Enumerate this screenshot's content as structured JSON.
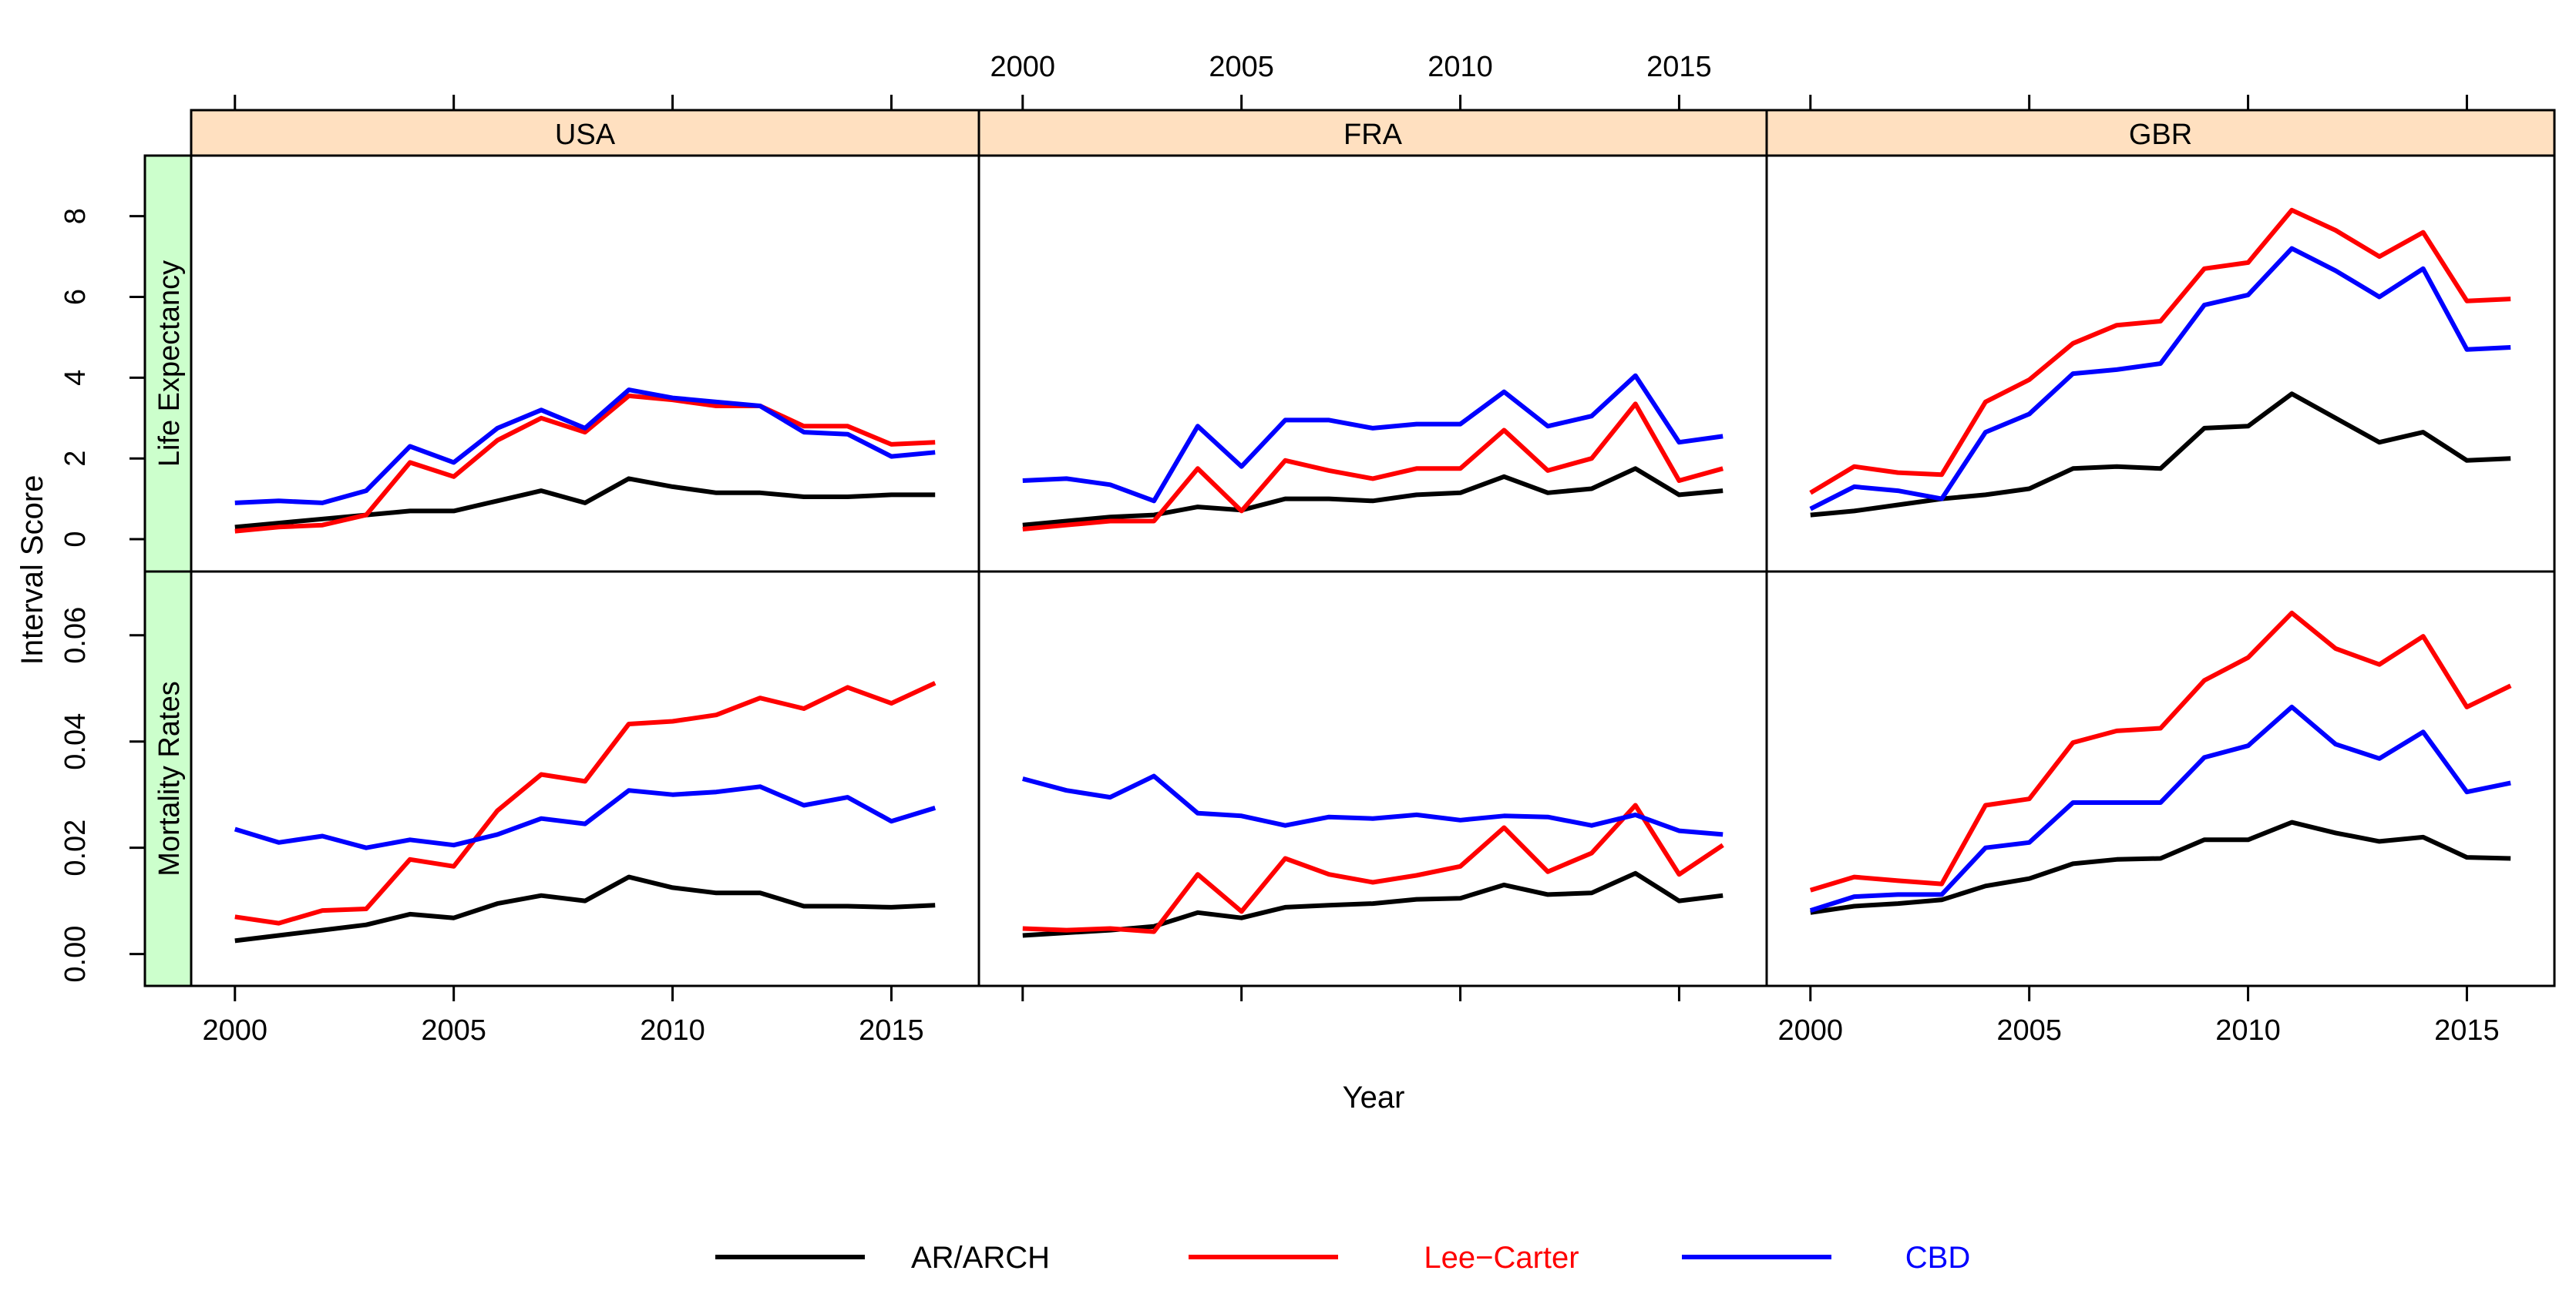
{
  "chart_data": {
    "type": "line",
    "layout": "lattice-panels",
    "xlabel": "Year",
    "ylabel": "Interval Score",
    "x_ticks": [
      2000,
      2005,
      2010,
      2015
    ],
    "x_tick_labels": [
      "2000",
      "2005",
      "2010",
      "2015"
    ],
    "xlim": [
      1999,
      2017
    ],
    "countries": [
      "USA",
      "FRA",
      "GBR"
    ],
    "rows": [
      {
        "label": "Life Expectancy",
        "ylim": [
          -0.8,
          9.5
        ],
        "ticks": [
          0,
          2,
          4,
          6,
          8
        ],
        "tick_labels": [
          "0",
          "2",
          "4",
          "6",
          "8"
        ]
      },
      {
        "label": "Mortality Rates",
        "ylim": [
          -0.006,
          0.072
        ],
        "ticks": [
          0,
          0.02,
          0.04,
          0.06
        ],
        "tick_labels": [
          "0.00",
          "0.02",
          "0.04",
          "0.06"
        ]
      }
    ],
    "legend": [
      {
        "name": "AR/ARCH",
        "color": "#000000",
        "label_color": "#000000"
      },
      {
        "name": "Lee−Carter",
        "color": "#ff0000",
        "label_color": "#ff0000"
      },
      {
        "name": "CBD",
        "color": "#0000ff",
        "label_color": "#0000ff"
      }
    ],
    "strip_colors": {
      "top": "#ffe0c0",
      "side": "#ccffcc"
    },
    "years": [
      2000,
      2001,
      2002,
      2003,
      2004,
      2005,
      2006,
      2007,
      2008,
      2009,
      2010,
      2011,
      2012,
      2013,
      2014,
      2015,
      2016
    ],
    "panels": [
      {
        "country": "USA",
        "row": "Life Expectancy",
        "series": [
          {
            "name": "AR/ARCH",
            "values": [
              0.3,
              0.4,
              0.5,
              0.6,
              0.7,
              0.7,
              0.95,
              1.2,
              0.9,
              1.5,
              1.3,
              1.15,
              1.15,
              1.05,
              1.05,
              1.1,
              1.1
            ]
          },
          {
            "name": "Lee-Carter",
            "values": [
              0.2,
              0.3,
              0.35,
              0.6,
              1.9,
              1.55,
              2.45,
              3.0,
              2.65,
              3.55,
              3.45,
              3.3,
              3.3,
              2.8,
              2.8,
              2.35,
              2.4
            ]
          },
          {
            "name": "CBD",
            "values": [
              0.9,
              0.95,
              0.9,
              1.2,
              2.3,
              1.9,
              2.75,
              3.2,
              2.75,
              3.7,
              3.5,
              3.4,
              3.3,
              2.65,
              2.6,
              2.05,
              2.15
            ]
          }
        ]
      },
      {
        "country": "FRA",
        "row": "Life Expectancy",
        "series": [
          {
            "name": "AR/ARCH",
            "values": [
              0.35,
              0.45,
              0.55,
              0.6,
              0.8,
              0.72,
              1.0,
              1.0,
              0.95,
              1.1,
              1.15,
              1.55,
              1.15,
              1.25,
              1.75,
              1.1,
              1.2
            ]
          },
          {
            "name": "Lee-Carter",
            "values": [
              0.25,
              0.35,
              0.45,
              0.45,
              1.75,
              0.7,
              1.95,
              1.7,
              1.5,
              1.75,
              1.75,
              2.7,
              1.7,
              2.0,
              3.35,
              1.45,
              1.75
            ]
          },
          {
            "name": "CBD",
            "values": [
              1.45,
              1.5,
              1.35,
              0.95,
              2.8,
              1.8,
              2.95,
              2.95,
              2.75,
              2.85,
              2.85,
              3.65,
              2.8,
              3.05,
              4.05,
              2.4,
              2.55
            ]
          }
        ]
      },
      {
        "country": "GBR",
        "row": "Life Expectancy",
        "series": [
          {
            "name": "AR/ARCH",
            "values": [
              0.6,
              0.7,
              0.85,
              1.0,
              1.1,
              1.25,
              1.75,
              1.8,
              1.75,
              2.75,
              2.8,
              3.6,
              3.0,
              2.4,
              2.65,
              1.95,
              2.0
            ]
          },
          {
            "name": "Lee-Carter",
            "values": [
              1.15,
              1.8,
              1.65,
              1.6,
              3.4,
              3.95,
              4.85,
              5.3,
              5.4,
              6.7,
              6.85,
              8.15,
              7.65,
              7.0,
              7.6,
              5.9,
              5.95
            ]
          },
          {
            "name": "CBD",
            "values": [
              0.75,
              1.3,
              1.2,
              1.0,
              2.65,
              3.1,
              4.1,
              4.2,
              4.35,
              5.8,
              6.05,
              7.2,
              6.65,
              6.0,
              6.7,
              4.7,
              4.75
            ]
          }
        ]
      },
      {
        "country": "USA",
        "row": "Mortality Rates",
        "series": [
          {
            "name": "AR/ARCH",
            "values": [
              0.0025,
              0.0035,
              0.0045,
              0.0055,
              0.0075,
              0.0068,
              0.0095,
              0.011,
              0.01,
              0.0145,
              0.0125,
              0.0115,
              0.0115,
              0.009,
              0.009,
              0.0088,
              0.0092
            ]
          },
          {
            "name": "Lee-Carter",
            "values": [
              0.007,
              0.0058,
              0.0082,
              0.0085,
              0.0178,
              0.0165,
              0.027,
              0.0338,
              0.0325,
              0.0433,
              0.0438,
              0.045,
              0.0482,
              0.0462,
              0.0502,
              0.0472,
              0.051
            ]
          },
          {
            "name": "CBD",
            "values": [
              0.0235,
              0.021,
              0.0222,
              0.02,
              0.0215,
              0.0205,
              0.0225,
              0.0255,
              0.0245,
              0.0308,
              0.03,
              0.0305,
              0.0315,
              0.028,
              0.0295,
              0.025,
              0.0275
            ]
          }
        ]
      },
      {
        "country": "FRA",
        "row": "Mortality Rates",
        "series": [
          {
            "name": "AR/ARCH",
            "values": [
              0.0035,
              0.004,
              0.0045,
              0.0052,
              0.0078,
              0.0068,
              0.0088,
              0.0092,
              0.0095,
              0.0103,
              0.0105,
              0.013,
              0.0112,
              0.0115,
              0.0152,
              0.01,
              0.011
            ]
          },
          {
            "name": "Lee-Carter",
            "values": [
              0.0048,
              0.0045,
              0.0048,
              0.0042,
              0.015,
              0.008,
              0.018,
              0.015,
              0.0135,
              0.0148,
              0.0165,
              0.0238,
              0.0155,
              0.019,
              0.028,
              0.015,
              0.0205
            ]
          },
          {
            "name": "CBD",
            "values": [
              0.033,
              0.0308,
              0.0295,
              0.0335,
              0.0265,
              0.026,
              0.0242,
              0.0258,
              0.0255,
              0.0262,
              0.0252,
              0.026,
              0.0258,
              0.0242,
              0.0262,
              0.0232,
              0.0225
            ]
          }
        ]
      },
      {
        "country": "GBR",
        "row": "Mortality Rates",
        "series": [
          {
            "name": "AR/ARCH",
            "values": [
              0.0078,
              0.009,
              0.0095,
              0.0102,
              0.0128,
              0.0142,
              0.017,
              0.0178,
              0.018,
              0.0215,
              0.0215,
              0.0248,
              0.0228,
              0.0212,
              0.022,
              0.0182,
              0.018
            ]
          },
          {
            "name": "Lee-Carter",
            "values": [
              0.012,
              0.0145,
              0.0138,
              0.0132,
              0.028,
              0.0292,
              0.0398,
              0.042,
              0.0425,
              0.0515,
              0.0558,
              0.0642,
              0.0575,
              0.0545,
              0.0598,
              0.0465,
              0.0505
            ]
          },
          {
            "name": "CBD",
            "values": [
              0.0082,
              0.0108,
              0.0112,
              0.0112,
              0.02,
              0.021,
              0.0285,
              0.0285,
              0.0285,
              0.037,
              0.0392,
              0.0465,
              0.0395,
              0.0368,
              0.0418,
              0.0305,
              0.0322
            ]
          }
        ]
      }
    ]
  }
}
